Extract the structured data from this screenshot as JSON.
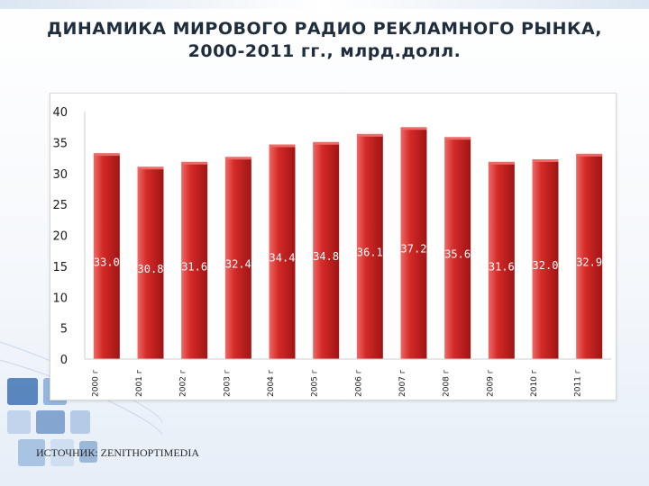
{
  "slide": {
    "title_line1": "ДИНАМИКА МИРОВОГО РАДИО РЕКЛАМНОГО РЫНКА,",
    "title_line2": "2000-2011 гг., млрд.долл.",
    "source": "ИСТОЧНИК: ZENITHOPTIMEDIA"
  },
  "colors": {
    "bar": "#d42a28",
    "bar_highlight": "#ee6a66",
    "bar_shadow": "#9e1514",
    "label": "#ffffff",
    "axis_text": "#1a1a1a",
    "deco_blue": "#3f73b4"
  },
  "chart_data": {
    "type": "bar",
    "title": "",
    "xlabel": "",
    "ylabel": "",
    "categories": [
      "2000 г",
      "2001 г",
      "2002 г",
      "2003 г",
      "2004 г",
      "2005 г",
      "2006 г",
      "2007 г",
      "2008 г",
      "2009 г",
      "2010 г",
      "2011 г"
    ],
    "values": [
      33.0,
      30.8,
      31.6,
      32.4,
      34.4,
      34.8,
      36.1,
      37.2,
      35.6,
      31.6,
      32.0,
      32.9
    ],
    "value_labels": [
      "33.0",
      "30.8",
      "31.6",
      "32.4",
      "34.4",
      "34.8",
      "36.1",
      "37.2",
      "35.6",
      "31.6",
      "32.0",
      "32.9"
    ],
    "ylim": [
      0,
      40
    ],
    "yticks": [
      0,
      5,
      10,
      15,
      20,
      25,
      30,
      35,
      40
    ],
    "grid": false,
    "legend": "none"
  }
}
